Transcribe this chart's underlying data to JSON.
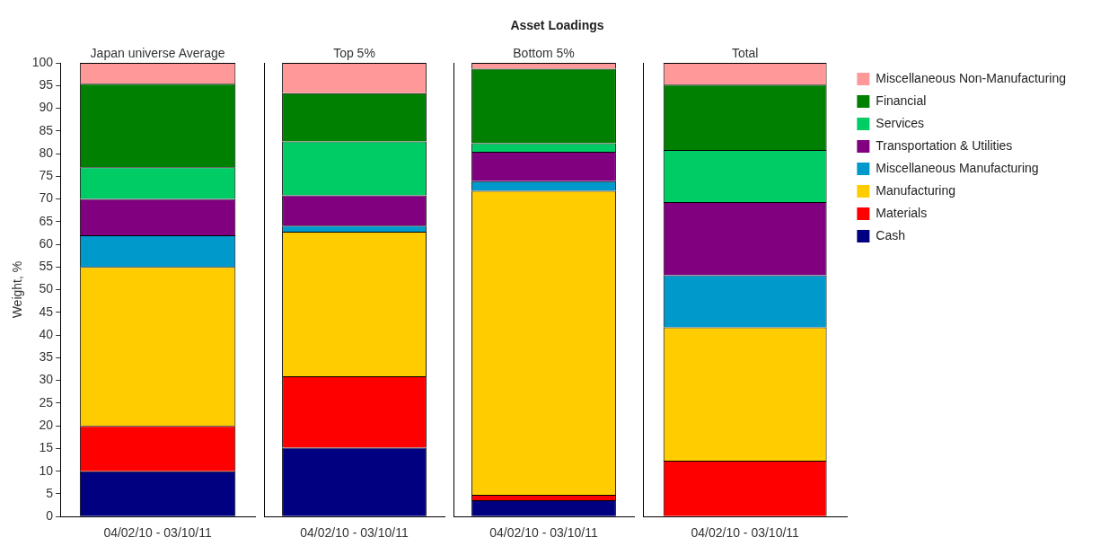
{
  "chart_data": [
    {
      "type": "other",
      "title": "Asset Loadings"
    },
    {
      "type": "bar",
      "title": "Japan universe Average",
      "ylabel": "Weight, %",
      "categories": [
        "04/02/10 - 03/10/11"
      ],
      "stacked": true,
      "ylim": [
        0,
        100
      ],
      "yticks": [
        0,
        5,
        10,
        15,
        20,
        25,
        30,
        35,
        40,
        45,
        50,
        55,
        60,
        65,
        70,
        75,
        80,
        85,
        90,
        95,
        100
      ],
      "grid": false,
      "legend": false,
      "series": [
        {
          "color": "#000080",
          "values": [
            10
          ]
        },
        {
          "color": "#ff0000",
          "values": [
            10
          ]
        },
        {
          "color": "#ffcc00",
          "values": [
            35
          ]
        },
        {
          "color": "#0099cc",
          "values": [
            7
          ]
        },
        {
          "color": "#800080",
          "values": [
            8
          ]
        },
        {
          "color": "#00cc66",
          "values": [
            7
          ]
        },
        {
          "color": "#008000",
          "values": [
            18.4
          ]
        },
        {
          "color": "#ff9999",
          "values": [
            4.6
          ]
        }
      ]
    },
    {
      "type": "bar",
      "title": "Top 5%",
      "categories": [
        "04/02/10 - 03/10/11"
      ],
      "stacked": true,
      "ylim": [
        0,
        100
      ],
      "yticks": [
        0,
        5,
        10,
        15,
        20,
        25,
        30,
        35,
        40,
        45,
        50,
        55,
        60,
        65,
        70,
        75,
        80,
        85,
        90,
        95,
        100
      ],
      "grid": false,
      "legend": false,
      "tick_labels": "x",
      "series": [
        {
          "color": "#000080",
          "values": [
            15.2
          ]
        },
        {
          "color": "#ff0000",
          "values": [
            15.7
          ]
        },
        {
          "color": "#ffcc00",
          "values": [
            31.9
          ]
        },
        {
          "color": "#0099cc",
          "values": [
            1.3
          ]
        },
        {
          "color": "#800080",
          "values": [
            6.7
          ]
        },
        {
          "color": "#00cc66",
          "values": [
            11.9
          ]
        },
        {
          "color": "#008000",
          "values": [
            10.6
          ]
        },
        {
          "color": "#ff9999",
          "values": [
            6.7
          ]
        }
      ]
    },
    {
      "type": "bar",
      "title": "Bottom 5%",
      "categories": [
        "04/02/10 - 03/10/11"
      ],
      "stacked": true,
      "ylim": [
        0,
        100
      ],
      "yticks": [
        0,
        5,
        10,
        15,
        20,
        25,
        30,
        35,
        40,
        45,
        50,
        55,
        60,
        65,
        70,
        75,
        80,
        85,
        90,
        95,
        100
      ],
      "grid": false,
      "legend": false,
      "tick_labels": "x",
      "series": [
        {
          "color": "#000080",
          "values": [
            3.6
          ]
        },
        {
          "color": "#ff0000",
          "values": [
            1.2
          ]
        },
        {
          "color": "#ffcc00",
          "values": [
            67
          ]
        },
        {
          "color": "#0099cc",
          "values": [
            2.1
          ]
        },
        {
          "color": "#800080",
          "values": [
            6.5
          ]
        },
        {
          "color": "#00cc66",
          "values": [
            1.9
          ]
        },
        {
          "color": "#008000",
          "values": [
            16.4
          ]
        },
        {
          "color": "#ff9999",
          "values": [
            1.3
          ]
        }
      ]
    },
    {
      "type": "bar",
      "title": "Total",
      "categories": [
        "04/02/10 - 03/10/11"
      ],
      "stacked": true,
      "ylim": [
        0,
        100
      ],
      "yticks": [
        0,
        5,
        10,
        15,
        20,
        25,
        30,
        35,
        40,
        45,
        50,
        55,
        60,
        65,
        70,
        75,
        80,
        85,
        90,
        95,
        100
      ],
      "grid": false,
      "legend": "right",
      "tick_labels": "x",
      "series": [
        {
          "name": "Cash",
          "color": "#000080",
          "values": [
            0
          ]
        },
        {
          "name": "Materials",
          "color": "#ff0000",
          "values": [
            12.3
          ]
        },
        {
          "name": "Manufacturing",
          "color": "#ffcc00",
          "values": [
            29.4
          ]
        },
        {
          "name": "Miscellaneous Manufacturing",
          "color": "#0099cc",
          "values": [
            11.5
          ]
        },
        {
          "name": "Transportation & Utilities",
          "color": "#800080",
          "values": [
            16.1
          ]
        },
        {
          "name": "Services",
          "color": "#00cc66",
          "values": [
            11.5
          ]
        },
        {
          "name": "Financial",
          "color": "#008000",
          "values": [
            14.4
          ]
        },
        {
          "name": "Miscellaneous Non-Manufacturing",
          "color": "#ff9999",
          "values": [
            4.8
          ]
        }
      ]
    }
  ]
}
